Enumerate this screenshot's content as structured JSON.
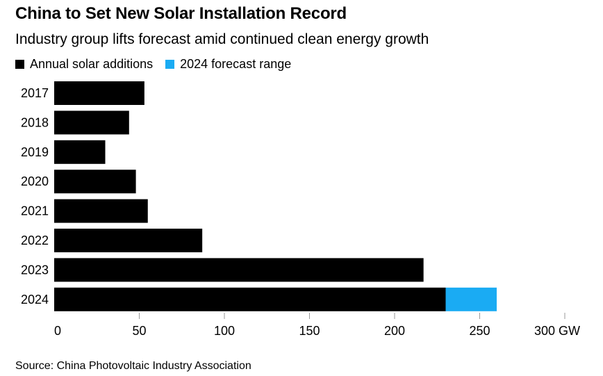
{
  "title": "China to Set New Solar Installation Record",
  "subtitle": "Industry group lifts forecast amid continued clean energy growth",
  "legend": {
    "annual_label": "Annual solar additions",
    "forecast_label": "2024 forecast range"
  },
  "source": "Source: China Photovoltaic Industry Association",
  "colors": {
    "annual": "#000000",
    "forecast": "#1aabf3"
  },
  "chart_data": {
    "type": "bar",
    "orientation": "horizontal",
    "stacked": true,
    "categories": [
      "2017",
      "2018",
      "2019",
      "2020",
      "2021",
      "2022",
      "2023",
      "2024"
    ],
    "series": [
      {
        "name": "Annual solar additions",
        "values": [
          53,
          44,
          30,
          48,
          55,
          87,
          217,
          230
        ]
      },
      {
        "name": "2024 forecast range",
        "values": [
          0,
          0,
          0,
          0,
          0,
          0,
          0,
          30
        ]
      }
    ],
    "xlim": [
      0,
      300
    ],
    "xticks": [
      0,
      50,
      100,
      150,
      200,
      250,
      300
    ],
    "xtick_labels": [
      "0",
      "50",
      "100",
      "150",
      "200",
      "250",
      "300 GW"
    ],
    "grid": false
  }
}
